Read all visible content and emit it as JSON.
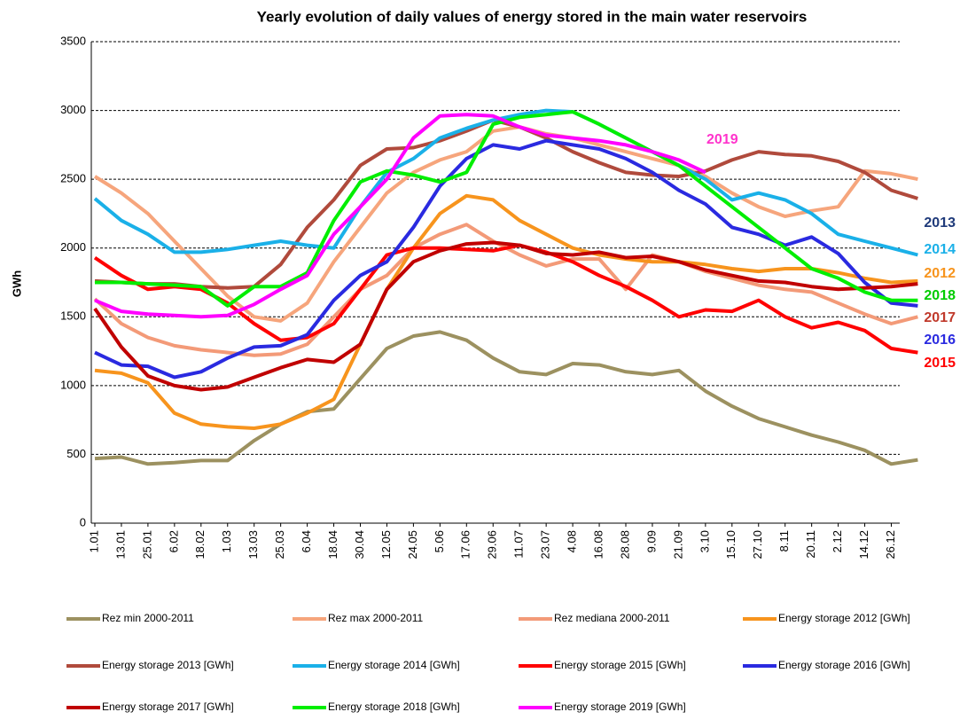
{
  "chart_data": {
    "type": "line",
    "title": "Yearly evolution of daily values of energy stored in the main water reservoirs",
    "y_label": "GWh",
    "categories": [
      "1.01",
      "13.01",
      "25.01",
      "6.02",
      "18.02",
      "1.03",
      "13.03",
      "25.03",
      "6.04",
      "18.04",
      "30.04",
      "12.05",
      "24.05",
      "5.06",
      "17.06",
      "29.06",
      "11.07",
      "23.07",
      "4.08",
      "16.08",
      "28.08",
      "9.09",
      "21.09",
      "3.10",
      "15.10",
      "27.10",
      "8.11",
      "20.11",
      "2.12",
      "14.12",
      "26.12",
      null
    ],
    "ylim": [
      0,
      3500
    ],
    "yticks": [
      0,
      500,
      1000,
      1500,
      2000,
      2500,
      3000,
      3500
    ],
    "grid": true,
    "legend": "bottom",
    "series": [
      {
        "name": "Rez min 2000-2011",
        "color": "#9c9160",
        "values": [
          470,
          480,
          430,
          440,
          455,
          455,
          600,
          720,
          810,
          830,
          1050,
          1270,
          1360,
          1390,
          1330,
          1200,
          1100,
          1080,
          1160,
          1150,
          1100,
          1080,
          1110,
          960,
          850,
          760,
          700,
          640,
          590,
          530,
          430,
          460
        ]
      },
      {
        "name": "Rez max 2000-2011",
        "color": "#f6a57c",
        "values": [
          2520,
          2400,
          2250,
          2050,
          1850,
          1650,
          1500,
          1470,
          1600,
          1900,
          2150,
          2400,
          2550,
          2640,
          2700,
          2850,
          2880,
          2830,
          2800,
          2750,
          2700,
          2650,
          2600,
          2520,
          2400,
          2300,
          2230,
          2270,
          2300,
          2560,
          2540,
          2500
        ]
      },
      {
        "name": "Rez mediana 2000-2011",
        "color": "#f39a78",
        "values": [
          1630,
          1450,
          1350,
          1290,
          1260,
          1240,
          1220,
          1230,
          1300,
          1500,
          1700,
          1800,
          2000,
          2100,
          2170,
          2050,
          1950,
          1870,
          1920,
          1920,
          1700,
          1950,
          1900,
          1830,
          1780,
          1730,
          1700,
          1680,
          1600,
          1520,
          1450,
          1500
        ]
      },
      {
        "name": "Energy storage 2012 [GWh]",
        "color": "#f7941d",
        "values": [
          1110,
          1090,
          1020,
          800,
          720,
          700,
          690,
          720,
          800,
          900,
          1300,
          1700,
          2000,
          2250,
          2380,
          2350,
          2200,
          2100,
          2000,
          1950,
          1920,
          1900,
          1900,
          1880,
          1850,
          1830,
          1850,
          1850,
          1820,
          1780,
          1750,
          1760
        ]
      },
      {
        "name": "Energy storage 2013 [GWh]",
        "color": "#b04a3c",
        "values": [
          1760,
          1750,
          1740,
          1740,
          1720,
          1710,
          1720,
          1880,
          2150,
          2350,
          2600,
          2720,
          2730,
          2780,
          2850,
          2930,
          2880,
          2800,
          2700,
          2620,
          2550,
          2530,
          2520,
          2560,
          2640,
          2700,
          2680,
          2670,
          2630,
          2550,
          2420,
          2360
        ]
      },
      {
        "name": "Energy storage 2014 [GWh]",
        "color": "#1ab0e8",
        "values": [
          2360,
          2200,
          2100,
          1970,
          1970,
          1990,
          2020,
          2050,
          2020,
          2000,
          2300,
          2550,
          2650,
          2800,
          2870,
          2930,
          2970,
          3000,
          2990,
          2900,
          2800,
          2700,
          2600,
          2500,
          2350,
          2400,
          2350,
          2250,
          2100,
          2050,
          2000,
          1950
        ]
      },
      {
        "name": "Energy storage 2015 [GWh]",
        "color": "#ff0000",
        "values": [
          1930,
          1800,
          1700,
          1720,
          1700,
          1600,
          1450,
          1330,
          1350,
          1450,
          1700,
          1950,
          2000,
          2000,
          1990,
          1980,
          2020,
          1970,
          1900,
          1800,
          1720,
          1620,
          1500,
          1550,
          1540,
          1620,
          1500,
          1420,
          1460,
          1400,
          1270,
          1240
        ]
      },
      {
        "name": "Energy storage 2016 [GWh]",
        "color": "#2a2ae0",
        "values": [
          1240,
          1150,
          1140,
          1060,
          1100,
          1200,
          1280,
          1290,
          1370,
          1620,
          1800,
          1900,
          2150,
          2450,
          2650,
          2750,
          2720,
          2780,
          2750,
          2720,
          2650,
          2550,
          2420,
          2320,
          2150,
          2100,
          2020,
          2080,
          1960,
          1750,
          1600,
          1580
        ]
      },
      {
        "name": "Energy storage 2017 [GWh]",
        "color": "#c00000",
        "values": [
          1560,
          1280,
          1070,
          1000,
          970,
          990,
          1060,
          1130,
          1190,
          1170,
          1300,
          1700,
          1900,
          1980,
          2030,
          2040,
          2020,
          1960,
          1950,
          1970,
          1930,
          1940,
          1900,
          1840,
          1800,
          1760,
          1750,
          1720,
          1700,
          1710,
          1720,
          1740
        ]
      },
      {
        "name": "Energy storage 2018 [GWh]",
        "color": "#00ee00",
        "values": [
          1750,
          1750,
          1740,
          1730,
          1720,
          1580,
          1720,
          1720,
          1820,
          2200,
          2480,
          2560,
          2530,
          2480,
          2550,
          2900,
          2950,
          2970,
          2990,
          2900,
          2800,
          2700,
          2600,
          2450,
          2300,
          2150,
          2000,
          1850,
          1780,
          1680,
          1620,
          1620
        ]
      },
      {
        "name": "Energy storage 2019 [GWh]",
        "color": "#ff00ff",
        "values": [
          1620,
          1540,
          1520,
          1510,
          1500,
          1510,
          1590,
          1700,
          1800,
          2100,
          2300,
          2500,
          2800,
          2960,
          2970,
          2960,
          2880,
          2820,
          2800,
          2780,
          2750,
          2700,
          2640,
          2550,
          null,
          null,
          null,
          null,
          null,
          null,
          null,
          null
        ]
      }
    ],
    "annotations": [
      {
        "text": "2019",
        "color": "#ff33cc"
      },
      {
        "text": "2013",
        "color": "#1f3a7a"
      },
      {
        "text": "2014",
        "color": "#1ab0e8"
      },
      {
        "text": "2012",
        "color": "#f7941d"
      },
      {
        "text": "2018",
        "color": "#00cc00"
      },
      {
        "text": "2017",
        "color": "#c0392b"
      },
      {
        "text": "2016",
        "color": "#2a2ae0"
      },
      {
        "text": "2015",
        "color": "#ff0000"
      }
    ]
  }
}
